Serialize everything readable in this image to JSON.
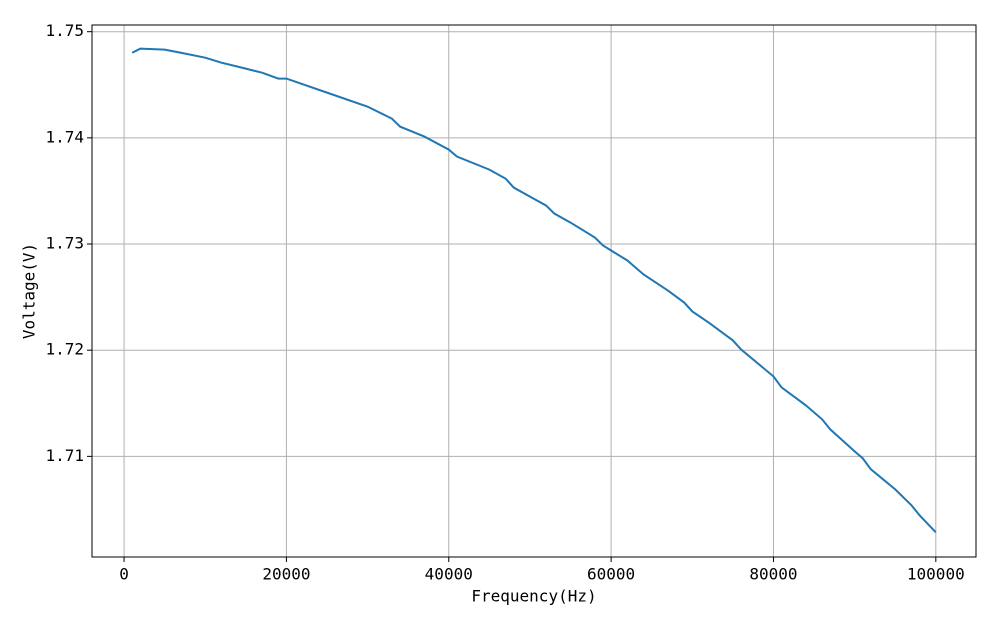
{
  "chart_data": {
    "type": "line",
    "x_label": "Frequency(Hz)",
    "y_label": "Voltage(V)",
    "x": [
      1000,
      2000,
      5000,
      7000,
      10000,
      12000,
      14000,
      17000,
      19000,
      20000,
      25000,
      30000,
      33000,
      34000,
      37000,
      40000,
      41000,
      45000,
      47000,
      48000,
      50000,
      52000,
      53000,
      55000,
      58000,
      59000,
      60000,
      62000,
      64000,
      67000,
      69000,
      70000,
      72000,
      75000,
      76000,
      80000,
      81000,
      84000,
      86000,
      87000,
      90000,
      91000,
      92000,
      95000,
      97000,
      98000,
      100000
    ],
    "series": [
      {
        "name": "Voltage",
        "color": "#1f77b4",
        "values": [
          1.74802,
          1.7484,
          1.74831,
          1.74802,
          1.74755,
          1.74708,
          1.74671,
          1.74614,
          1.74558,
          1.74558,
          1.74426,
          1.74294,
          1.74181,
          1.74106,
          1.74012,
          1.73889,
          1.73824,
          1.73701,
          1.73616,
          1.73532,
          1.73447,
          1.73362,
          1.73287,
          1.73202,
          1.73061,
          1.72986,
          1.72939,
          1.72845,
          1.72713,
          1.72562,
          1.72449,
          1.72365,
          1.72261,
          1.72092,
          1.72007,
          1.71753,
          1.71649,
          1.7148,
          1.71348,
          1.71254,
          1.71047,
          1.70981,
          1.70878,
          1.70689,
          1.70539,
          1.70445,
          1.70285
        ]
      }
    ],
    "xlim": [
      -3950,
      104950
    ],
    "ylim": [
      1.70052,
      1.75063
    ],
    "xticks": [
      0,
      20000,
      40000,
      60000,
      80000,
      100000
    ],
    "yticks": [
      1.71,
      1.72,
      1.73,
      1.74,
      1.75
    ],
    "grid": true
  }
}
